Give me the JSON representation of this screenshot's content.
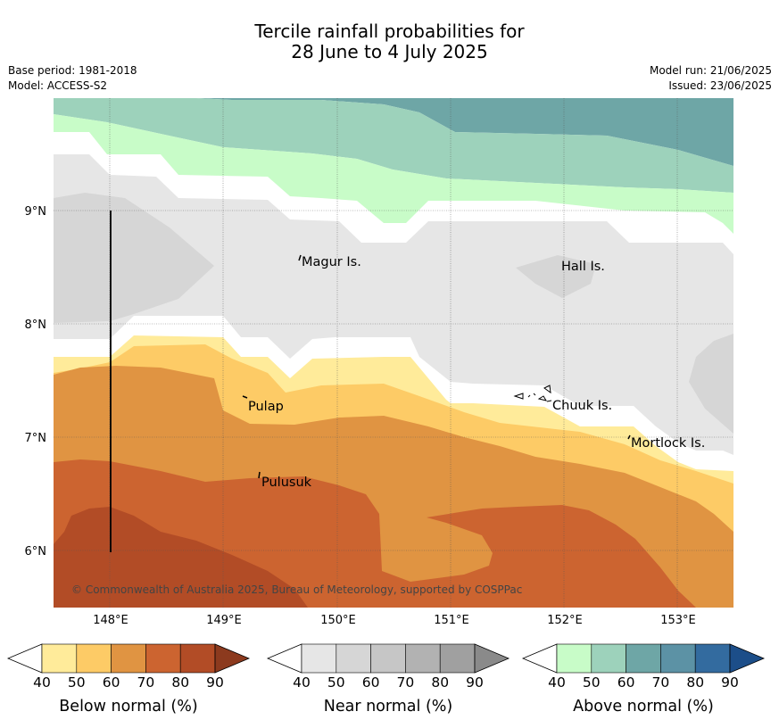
{
  "header": {
    "title_line1": "Tercile rainfall probabilities for",
    "title_line2": "28 June to 4 July 2025",
    "base_period": "Base period: 1981-2018",
    "model": "Model: ACCESS-S2",
    "model_run": "Model run: 21/06/2025",
    "issued": "Issued: 23/06/2025"
  },
  "map": {
    "lat_labels": [
      "9°N",
      "8°N",
      "7°N",
      "6°N"
    ],
    "lon_labels": [
      "148°E",
      "149°E",
      "150°E",
      "151°E",
      "152°E",
      "153°E"
    ],
    "places": {
      "magur": "Magur Is.",
      "hall": "Hall Is.",
      "pulap": "Pulap",
      "chuuk": "Chuuk Is.",
      "mortlock": "Mortlock Is.",
      "pulusuk": "Pulusuk"
    },
    "copyright": "© Commonwealth of Australia 2025, Bureau of Meteorology, supported by COSPPac",
    "colors": {
      "below": [
        "#ffeb9a",
        "#fdcb66",
        "#e09442",
        "#cc6430",
        "#b24c26",
        "#8c3a1e"
      ],
      "near": [
        "#e6e6e6",
        "#d6d6d6",
        "#c6c6c6",
        "#b2b2b2",
        "#a0a0a0",
        "#8a8a8a"
      ],
      "above": [
        "#c8fcc8",
        "#9dd2bb",
        "#6ea6a6",
        "#5c92a5",
        "#336b9f",
        "#1c4e89"
      ]
    }
  },
  "legend": {
    "below": {
      "title": "Below normal (%)",
      "ticks": [
        "40",
        "50",
        "60",
        "70",
        "80",
        "90"
      ]
    },
    "near": {
      "title": "Near normal (%)",
      "ticks": [
        "40",
        "50",
        "60",
        "70",
        "80",
        "90"
      ]
    },
    "above": {
      "title": "Above normal (%)",
      "ticks": [
        "40",
        "50",
        "60",
        "70",
        "80",
        "90"
      ]
    }
  }
}
